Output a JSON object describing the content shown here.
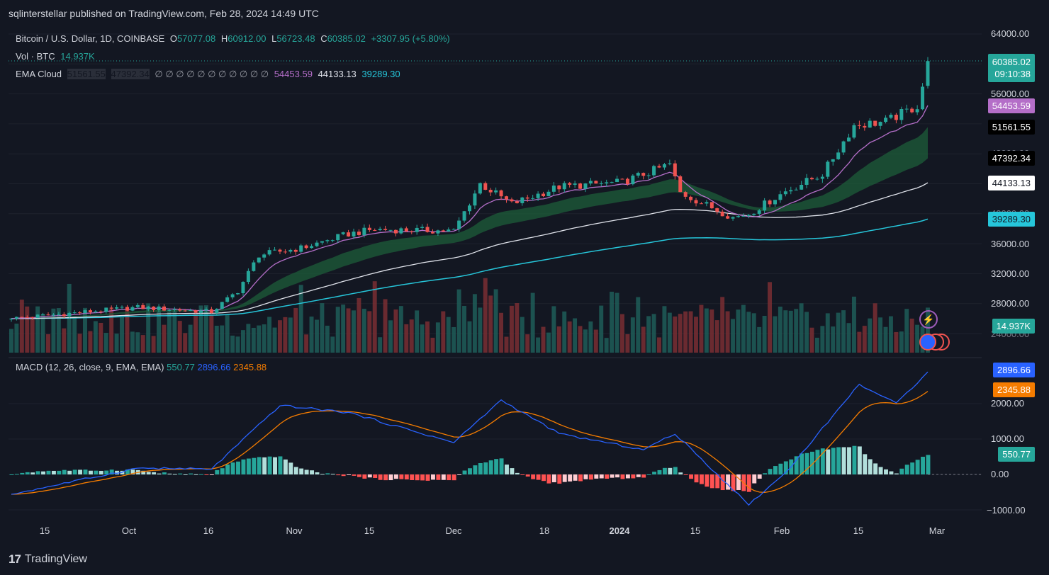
{
  "header": {
    "publish_line": "sqlinterstellar published on TradingView.com, Feb 28, 2024 14:49 UTC"
  },
  "legend": {
    "symbol": "Bitcoin / U.S. Dollar, 1D, COINBASE",
    "o_label": "O",
    "o_value": "57077.08",
    "h_label": "H",
    "h_value": "60912.00",
    "l_label": "L",
    "l_value": "56723.48",
    "c_label": "C",
    "c_value": "60385.02",
    "change": "+3307.95 (+5.80%)",
    "vol_label": "Vol · BTC",
    "vol_value": "14.937K",
    "ema_label": "EMA Cloud",
    "ema_v1": "51561.55",
    "ema_v2": "47392.34",
    "ema_empty": "∅ ∅ ∅ ∅ ∅ ∅ ∅ ∅ ∅ ∅ ∅",
    "ema_v3": "54453.59",
    "ema_v4": "44133.13",
    "ema_v5": "39289.30"
  },
  "macd_legend": {
    "label": "MACD (12, 26, close, 9, EMA, EMA)",
    "hist": "550.77",
    "macd": "2896.66",
    "signal": "2345.88"
  },
  "price_labels": {
    "last": "60385.02",
    "countdown": "09:10:38",
    "ema_fast": "54453.59",
    "ema_a": "51561.55",
    "ema_b": "47392.34",
    "ema_mid": "44133.13",
    "ema_slow": "39289.30",
    "volume": "14.937K"
  },
  "macd_labels": {
    "macd": "2896.66",
    "signal": "2345.88",
    "hist": "550.77"
  },
  "price_ticks": [
    "64000.00",
    "56000.00",
    "36000.00",
    "32000.00",
    "28000.00",
    "24000.00",
    "40000.00",
    "48000.00"
  ],
  "macd_ticks": [
    "2000.00",
    "1000.00",
    "0.00",
    "−1000.00"
  ],
  "x_ticks": [
    "15",
    "Oct",
    "16",
    "Nov",
    "15",
    "Dec",
    "18",
    "2024",
    "15",
    "Feb",
    "15",
    "Mar"
  ],
  "footer": {
    "brand": "TradingView"
  },
  "colors": {
    "up": "#26a69a",
    "down": "#ef5350",
    "ema_fast": "#b46ec8",
    "cloud": "#1e5e3a",
    "ema_mid": "#e0e3eb",
    "ema_slow": "#26c6da",
    "macd": "#2962ff",
    "signal": "#f57c00"
  },
  "chart_data": {
    "type": "candlestick",
    "title": "Bitcoin / U.S. Dollar, 1D, COINBASE",
    "x_range": [
      "2023-09-07",
      "2024-02-28"
    ],
    "ylim": [
      22000,
      66000
    ],
    "price_anchors": [
      {
        "date": "2023-09-07",
        "close": 26000
      },
      {
        "date": "2023-09-15",
        "close": 26500
      },
      {
        "date": "2023-10-01",
        "close": 27500
      },
      {
        "date": "2023-10-15",
        "close": 26900
      },
      {
        "date": "2023-10-20",
        "close": 29700
      },
      {
        "date": "2023-10-24",
        "close": 34500
      },
      {
        "date": "2023-11-01",
        "close": 35400
      },
      {
        "date": "2023-11-10",
        "close": 37300
      },
      {
        "date": "2023-11-15",
        "close": 37900
      },
      {
        "date": "2023-11-30",
        "close": 37700
      },
      {
        "date": "2023-12-05",
        "close": 44000
      },
      {
        "date": "2023-12-11",
        "close": 41300
      },
      {
        "date": "2023-12-20",
        "close": 43600
      },
      {
        "date": "2024-01-01",
        "close": 44200
      },
      {
        "date": "2024-01-10",
        "close": 46600
      },
      {
        "date": "2024-01-12",
        "close": 42800
      },
      {
        "date": "2024-01-22",
        "close": 39500
      },
      {
        "date": "2024-01-25",
        "close": 40000
      },
      {
        "date": "2024-02-01",
        "close": 43000
      },
      {
        "date": "2024-02-08",
        "close": 45300
      },
      {
        "date": "2024-02-14",
        "close": 51800
      },
      {
        "date": "2024-02-20",
        "close": 52300
      },
      {
        "date": "2024-02-26",
        "close": 54400
      },
      {
        "date": "2024-02-27",
        "close": 57077
      },
      {
        "date": "2024-02-28",
        "close": 60385
      }
    ],
    "last_ohlc": {
      "open": 57077.08,
      "high": 60912.0,
      "low": 56723.48,
      "close": 60385.02,
      "volume": "14.937K"
    },
    "ema_last": {
      "ema_fast": 54453.59,
      "cloud_upper": 51561.55,
      "cloud_lower": 47392.34,
      "ema_mid": 44133.13,
      "ema_slow": 39289.3
    },
    "macd": {
      "ylim": [
        -1000,
        2000
      ],
      "last": {
        "macd": 2896.66,
        "signal": 2345.88,
        "hist": 550.77
      },
      "anchors": [
        {
          "date": "2023-09-07",
          "macd": -560
        },
        {
          "date": "2023-10-01",
          "macd": 180
        },
        {
          "date": "2023-10-15",
          "macd": 150
        },
        {
          "date": "2023-10-28",
          "macd": 1950
        },
        {
          "date": "2023-11-10",
          "macd": 1750
        },
        {
          "date": "2023-11-30",
          "macd": 900
        },
        {
          "date": "2023-12-09",
          "macd": 2100
        },
        {
          "date": "2023-12-20",
          "macd": 1150
        },
        {
          "date": "2024-01-05",
          "macd": 700
        },
        {
          "date": "2024-01-11",
          "macd": 1150
        },
        {
          "date": "2024-01-25",
          "macd": -850
        },
        {
          "date": "2024-02-01",
          "macd": 50
        },
        {
          "date": "2024-02-15",
          "macd": 2550
        },
        {
          "date": "2024-02-22",
          "macd": 2000
        },
        {
          "date": "2024-02-28",
          "macd": 2896
        }
      ]
    }
  }
}
